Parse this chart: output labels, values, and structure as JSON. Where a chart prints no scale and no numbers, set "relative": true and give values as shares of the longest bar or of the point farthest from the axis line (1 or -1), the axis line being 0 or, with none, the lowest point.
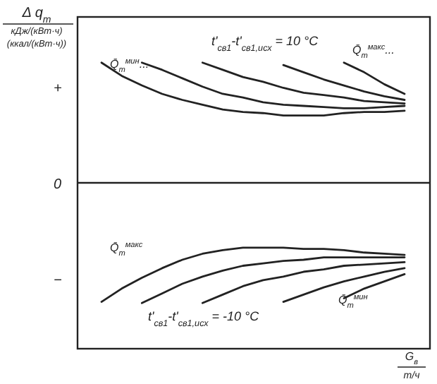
{
  "chart_data": {
    "type": "line",
    "relative": true,
    "marker": "none",
    "line_style": "solid",
    "xlabel": "G$_{в}$\nт/ч",
    "ylabel": "Δ q$_{т}$\nкДж/(кВт·ч)\n(ккал/(кВт·ч))",
    "categories": [
      null,
      null,
      null,
      null,
      null,
      null,
      null,
      null,
      null,
      null,
      null,
      null,
      null,
      null,
      null,
      null
    ],
    "series": [
      {
        "color": "#222222",
        "values": [
          1.0,
          0.89,
          0.81,
          0.74,
          0.69,
          0.65,
          0.61,
          0.59,
          0.58,
          0.56,
          0.56,
          0.56,
          0.58,
          0.59,
          0.59,
          0.6
        ]
      },
      {
        "color": "#222222",
        "values": [
          null,
          null,
          1.0,
          0.94,
          0.87,
          0.8,
          0.74,
          0.71,
          0.67,
          0.65,
          0.64,
          0.63,
          0.62,
          0.62,
          0.63,
          0.64
        ]
      },
      {
        "color": "#222222",
        "values": [
          null,
          null,
          null,
          null,
          null,
          1.0,
          0.94,
          0.88,
          0.84,
          0.79,
          0.75,
          0.73,
          0.71,
          0.68,
          0.67,
          0.66
        ]
      },
      {
        "color": "#222222",
        "values": [
          null,
          null,
          null,
          null,
          null,
          null,
          null,
          null,
          null,
          0.98,
          0.92,
          0.86,
          0.81,
          0.76,
          0.72,
          0.69
        ]
      },
      {
        "color": "#222222",
        "values": [
          null,
          null,
          null,
          null,
          null,
          null,
          null,
          null,
          null,
          null,
          null,
          null,
          1.0,
          0.92,
          0.82,
          0.74
        ]
      },
      {
        "color": "#222222",
        "values": [
          -0.99,
          -0.88,
          -0.79,
          -0.71,
          -0.64,
          -0.59,
          -0.56,
          -0.54,
          -0.54,
          -0.54,
          -0.55,
          -0.55,
          -0.56,
          -0.58,
          -0.59,
          -0.6
        ]
      },
      {
        "color": "#222222",
        "values": [
          null,
          null,
          -1.0,
          -0.92,
          -0.84,
          -0.78,
          -0.73,
          -0.69,
          -0.67,
          -0.65,
          -0.64,
          -0.62,
          -0.62,
          -0.62,
          -0.62,
          -0.62
        ]
      },
      {
        "color": "#222222",
        "values": [
          null,
          null,
          null,
          null,
          null,
          -1.0,
          -0.93,
          -0.86,
          -0.81,
          -0.78,
          -0.74,
          -0.72,
          -0.69,
          -0.68,
          -0.67,
          -0.66
        ]
      },
      {
        "color": "#222222",
        "values": [
          null,
          null,
          null,
          null,
          null,
          null,
          null,
          null,
          null,
          -0.99,
          -0.93,
          -0.87,
          -0.82,
          -0.78,
          -0.74,
          -0.71
        ]
      },
      {
        "color": "#222222",
        "values": [
          null,
          null,
          null,
          null,
          null,
          null,
          null,
          null,
          null,
          null,
          null,
          null,
          -0.96,
          -0.88,
          -0.82,
          -0.76
        ]
      }
    ],
    "annotations": [
      "t'$_{св1}$-t'$_{св1,исх}$ = 10 °C",
      "t'$_{св1}$-t'$_{св1,исх}$ = -10 °C",
      "Q̄$_{т}$$^{мин}$...",
      "Q̄$_{т}$$^{макс}$...",
      "Q̄$_{т}$$^{макс}$",
      "Q̄$_{т}$$^{мин}$",
      "+",
      "0",
      "−"
    ]
  }
}
